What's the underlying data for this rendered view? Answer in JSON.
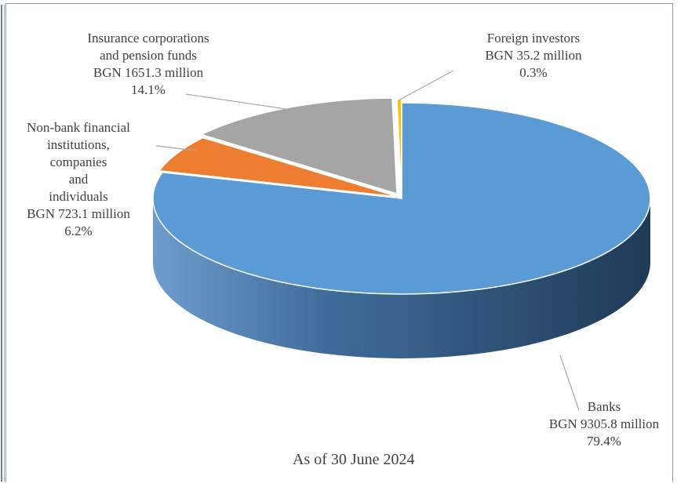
{
  "chart_data": {
    "type": "pie",
    "style": "3d",
    "caption": "As of 30 June 2024",
    "slices": [
      {
        "name": "Banks",
        "value_text": "BGN 9305.8 million",
        "value": 9305.8,
        "percent": 79.4,
        "percent_text": "79.4%",
        "color": "#5b9bd5"
      },
      {
        "name_lines": [
          "Non-bank financial",
          "institutions,",
          "companies",
          "and",
          "individuals"
        ],
        "value_text": "BGN 723.1 million",
        "value": 723.1,
        "percent": 6.2,
        "percent_text": "6.2%",
        "color": "#ed7d31"
      },
      {
        "name_lines": [
          "Insurance corporations",
          "and pension funds"
        ],
        "value_text": "BGN 1651.3 million",
        "value": 1651.3,
        "percent": 14.1,
        "percent_text": "14.1%",
        "color": "#a5a5a5"
      },
      {
        "name": "Foreign investors",
        "value_text": "BGN 35.2 million",
        "value": 35.2,
        "percent": 0.3,
        "percent_text": "0.3%",
        "color": "#ffc000"
      }
    ]
  }
}
